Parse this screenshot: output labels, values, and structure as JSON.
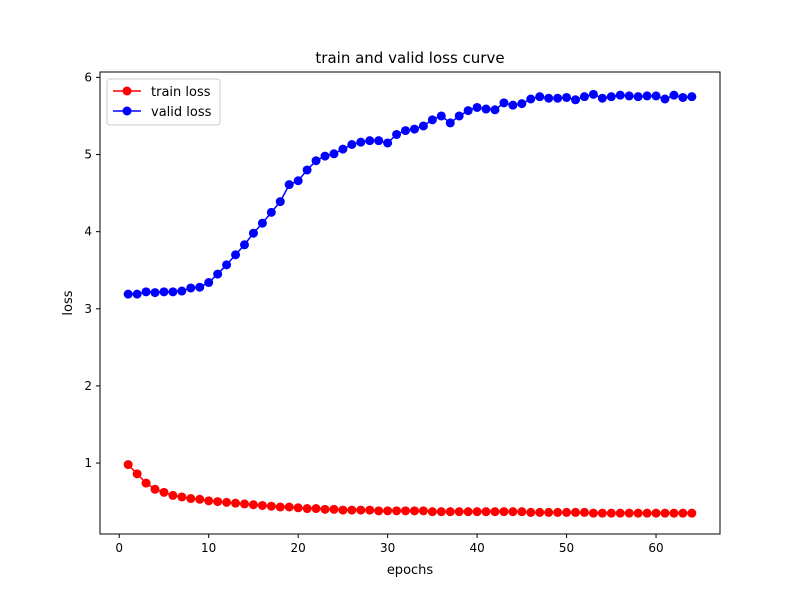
{
  "chart_data": {
    "type": "line",
    "title": "train and valid loss curve",
    "xlabel": "epochs",
    "ylabel": "loss",
    "xlim": [
      -2.15,
      67.15
    ],
    "ylim": [
      0.08,
      6.07
    ],
    "xticks": [
      0,
      10,
      20,
      30,
      40,
      50,
      60
    ],
    "yticks": [
      1,
      2,
      3,
      4,
      5,
      6
    ],
    "grid": false,
    "legend_position": "upper-left",
    "x": [
      1,
      2,
      3,
      4,
      5,
      6,
      7,
      8,
      9,
      10,
      11,
      12,
      13,
      14,
      15,
      16,
      17,
      18,
      19,
      20,
      21,
      22,
      23,
      24,
      25,
      26,
      27,
      28,
      29,
      30,
      31,
      32,
      33,
      34,
      35,
      36,
      37,
      38,
      39,
      40,
      41,
      42,
      43,
      44,
      45,
      46,
      47,
      48,
      49,
      50,
      51,
      52,
      53,
      54,
      55,
      56,
      57,
      58,
      59,
      60,
      61,
      62,
      63,
      64
    ],
    "series": [
      {
        "name": "train loss",
        "color": "#ff0000",
        "values": [
          0.98,
          0.86,
          0.74,
          0.66,
          0.62,
          0.58,
          0.56,
          0.54,
          0.53,
          0.51,
          0.5,
          0.49,
          0.48,
          0.47,
          0.46,
          0.45,
          0.44,
          0.43,
          0.43,
          0.42,
          0.41,
          0.41,
          0.4,
          0.4,
          0.39,
          0.39,
          0.39,
          0.39,
          0.38,
          0.38,
          0.38,
          0.38,
          0.38,
          0.38,
          0.37,
          0.37,
          0.37,
          0.37,
          0.37,
          0.37,
          0.37,
          0.37,
          0.37,
          0.37,
          0.37,
          0.36,
          0.36,
          0.36,
          0.36,
          0.36,
          0.36,
          0.36,
          0.35,
          0.35,
          0.35,
          0.35,
          0.35,
          0.35,
          0.35,
          0.35,
          0.35,
          0.35,
          0.35,
          0.35
        ]
      },
      {
        "name": "valid loss",
        "color": "#0000ff",
        "values": [
          3.19,
          3.19,
          3.22,
          3.21,
          3.22,
          3.22,
          3.23,
          3.27,
          3.28,
          3.34,
          3.45,
          3.57,
          3.7,
          3.83,
          3.98,
          4.11,
          4.25,
          4.39,
          4.61,
          4.66,
          4.8,
          4.92,
          4.98,
          5.01,
          5.07,
          5.13,
          5.16,
          5.18,
          5.18,
          5.15,
          5.26,
          5.31,
          5.33,
          5.37,
          5.45,
          5.5,
          5.41,
          5.5,
          5.57,
          5.61,
          5.59,
          5.58,
          5.67,
          5.64,
          5.66,
          5.72,
          5.75,
          5.73,
          5.73,
          5.74,
          5.71,
          5.75,
          5.78,
          5.73,
          5.75,
          5.77,
          5.76,
          5.75,
          5.76,
          5.76,
          5.72,
          5.77,
          5.74,
          5.75
        ]
      }
    ]
  }
}
